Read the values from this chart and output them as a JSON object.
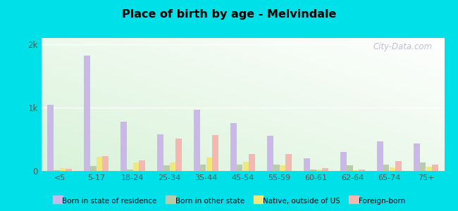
{
  "title": "Place of birth by age - Melvindale",
  "categories": [
    "<5",
    "5-17",
    "18-24",
    "25-34",
    "35-44",
    "45-54",
    "55-59",
    "60-61",
    "62-64",
    "65-74",
    "75+"
  ],
  "series": {
    "Born in state of residence": [
      1050,
      1820,
      780,
      580,
      970,
      760,
      560,
      195,
      300,
      470,
      430
    ],
    "Born in other state": [
      15,
      75,
      25,
      85,
      100,
      100,
      100,
      25,
      90,
      95,
      130
    ],
    "Native, outside of US": [
      45,
      220,
      130,
      130,
      210,
      140,
      85,
      25,
      15,
      60,
      65
    ],
    "Foreign-born": [
      30,
      235,
      170,
      510,
      570,
      270,
      270,
      45,
      18,
      160,
      95
    ]
  },
  "bar_colors": {
    "Born in state of residence": "#c9b8e8",
    "Born in other state": "#b8ccaa",
    "Native, outside of US": "#f0e87a",
    "Foreign-born": "#f5b8b0"
  },
  "legend_colors": {
    "Born in state of residence": "#d8b8d8",
    "Born in other state": "#d8d8a0",
    "Native, outside of US": "#f5e860",
    "Foreign-born": "#f5a8a0"
  },
  "ylim": [
    0,
    2100
  ],
  "yticks": [
    0,
    1000,
    2000
  ],
  "ytick_labels": [
    "0",
    "1k",
    "2k"
  ],
  "outer_background": "#00e0e8",
  "watermark": "City-Data.com"
}
